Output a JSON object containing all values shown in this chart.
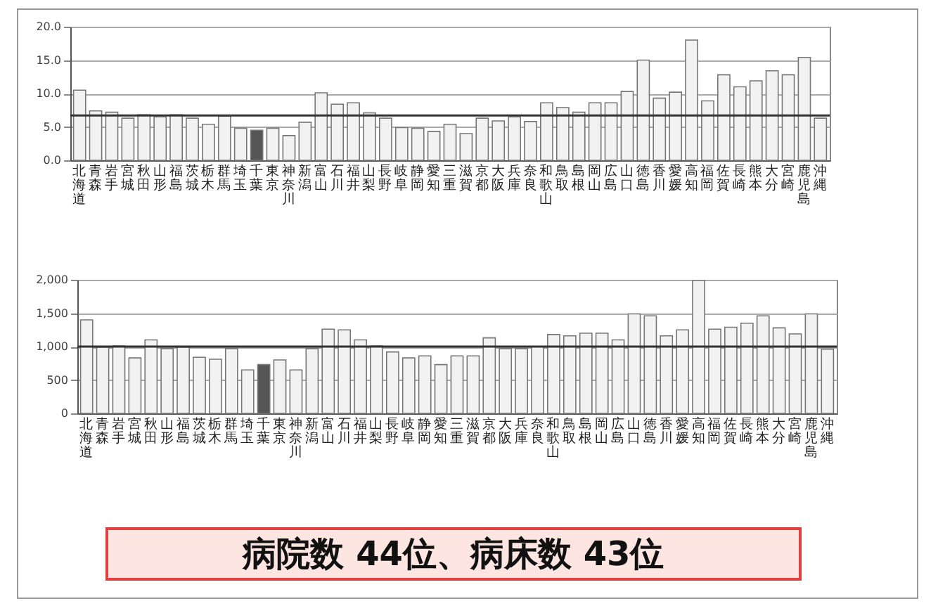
{
  "chart_data": [
    {
      "type": "bar",
      "categories": [
        "北海道",
        "青森",
        "岩手",
        "宮城",
        "秋田",
        "山形",
        "福島",
        "茨城",
        "栃木",
        "群馬",
        "埼玉",
        "千葉",
        "東京",
        "神奈川",
        "新潟",
        "富山",
        "石川",
        "福井",
        "山梨",
        "長野",
        "岐阜",
        "静岡",
        "愛知",
        "三重",
        "滋賀",
        "京都",
        "大阪",
        "兵庫",
        "奈良",
        "和歌山",
        "鳥取",
        "島根",
        "岡山",
        "広島",
        "山口",
        "徳島",
        "香川",
        "愛媛",
        "高知",
        "福岡",
        "佐賀",
        "長崎",
        "熊本",
        "大分",
        "宮崎",
        "鹿児島",
        "沖縄"
      ],
      "values": [
        10.5,
        7.4,
        7.2,
        6.3,
        6.8,
        6.5,
        6.8,
        6.3,
        5.4,
        6.6,
        4.8,
        4.5,
        4.8,
        3.7,
        5.7,
        10.1,
        8.4,
        8.6,
        7.1,
        6.3,
        4.9,
        4.8,
        4.3,
        5.4,
        4.0,
        6.3,
        5.9,
        6.5,
        5.8,
        8.6,
        7.9,
        7.2,
        8.6,
        8.6,
        10.3,
        15.0,
        9.3,
        10.2,
        18.0,
        8.9,
        12.8,
        11.0,
        11.9,
        13.4,
        12.8,
        15.4,
        6.3
      ],
      "colors": [
        "#f2f2f2",
        "#f2f2f2",
        "#f2f2f2",
        "#f2f2f2",
        "#f2f2f2",
        "#f2f2f2",
        "#f2f2f2",
        "#f2f2f2",
        "#f2f2f2",
        "#f2f2f2",
        "#f2f2f2",
        "#555555",
        "#f2f2f2",
        "#f2f2f2",
        "#f2f2f2",
        "#f2f2f2",
        "#f2f2f2",
        "#f2f2f2",
        "#f2f2f2",
        "#f2f2f2",
        "#f2f2f2",
        "#f2f2f2",
        "#f2f2f2",
        "#f2f2f2",
        "#f2f2f2",
        "#f2f2f2",
        "#f2f2f2",
        "#f2f2f2",
        "#f2f2f2",
        "#f2f2f2",
        "#f2f2f2",
        "#f2f2f2",
        "#f2f2f2",
        "#f2f2f2",
        "#f2f2f2",
        "#f2f2f2",
        "#f2f2f2",
        "#f2f2f2",
        "#f2f2f2",
        "#f2f2f2",
        "#f2f2f2",
        "#f2f2f2",
        "#f2f2f2",
        "#f2f2f2",
        "#f2f2f2",
        "#f2f2f2",
        "#f2f2f2"
      ],
      "ylim": [
        0,
        20
      ],
      "yticks": [
        {
          "value": 0,
          "label": "0.0"
        },
        {
          "value": 5,
          "label": "5.0"
        },
        {
          "value": 10,
          "label": "10.0"
        },
        {
          "value": 15,
          "label": "15.0"
        },
        {
          "value": 20,
          "label": "20.0"
        }
      ],
      "grid": "y",
      "ref_lines": [
        {
          "axis": "y",
          "value": 6.7,
          "color": "#333333"
        }
      ]
    },
    {
      "type": "bar",
      "categories": [
        "北海道",
        "青森",
        "岩手",
        "宮城",
        "秋田",
        "山形",
        "福島",
        "茨城",
        "栃木",
        "群馬",
        "埼玉",
        "千葉",
        "東京",
        "神奈川",
        "新潟",
        "富山",
        "石川",
        "福井",
        "山梨",
        "長野",
        "岐阜",
        "静岡",
        "愛知",
        "三重",
        "滋賀",
        "京都",
        "大阪",
        "兵庫",
        "奈良",
        "和歌山",
        "鳥取",
        "島根",
        "岡山",
        "広島",
        "山口",
        "徳島",
        "香川",
        "愛媛",
        "高知",
        "福岡",
        "佐賀",
        "長崎",
        "熊本",
        "大分",
        "宮崎",
        "鹿児島",
        "沖縄"
      ],
      "values": [
        1400,
        990,
        1010,
        830,
        1100,
        970,
        990,
        840,
        810,
        970,
        650,
        730,
        800,
        650,
        970,
        1260,
        1250,
        1100,
        1010,
        920,
        830,
        860,
        730,
        860,
        860,
        1130,
        970,
        970,
        1000,
        1180,
        1160,
        1200,
        1200,
        1100,
        1490,
        1460,
        1160,
        1250,
        1990,
        1260,
        1290,
        1350,
        1460,
        1280,
        1190,
        1490,
        960
      ],
      "colors": [
        "#f2f2f2",
        "#f2f2f2",
        "#f2f2f2",
        "#f2f2f2",
        "#f2f2f2",
        "#f2f2f2",
        "#f2f2f2",
        "#f2f2f2",
        "#f2f2f2",
        "#f2f2f2",
        "#f2f2f2",
        "#555555",
        "#f2f2f2",
        "#f2f2f2",
        "#f2f2f2",
        "#f2f2f2",
        "#f2f2f2",
        "#f2f2f2",
        "#f2f2f2",
        "#f2f2f2",
        "#f2f2f2",
        "#f2f2f2",
        "#f2f2f2",
        "#f2f2f2",
        "#f2f2f2",
        "#f2f2f2",
        "#f2f2f2",
        "#f2f2f2",
        "#f2f2f2",
        "#f2f2f2",
        "#f2f2f2",
        "#f2f2f2",
        "#f2f2f2",
        "#f2f2f2",
        "#f2f2f2",
        "#f2f2f2",
        "#f2f2f2",
        "#f2f2f2",
        "#f2f2f2",
        "#f2f2f2",
        "#f2f2f2",
        "#f2f2f2",
        "#f2f2f2",
        "#f2f2f2",
        "#f2f2f2",
        "#f2f2f2",
        "#f2f2f2"
      ],
      "ylim": [
        0,
        2000
      ],
      "yticks": [
        0,
        500,
        {
          "value": 1000,
          "label": "1,000"
        },
        {
          "value": 1500,
          "label": "1,500"
        },
        {
          "value": 2000,
          "label": "2,000"
        }
      ],
      "grid": "y",
      "ref_lines": [
        {
          "axis": "y",
          "value": 1000,
          "color": "#333333"
        }
      ],
      "annotations": [
        "病院数 44位、病床数 43位"
      ]
    }
  ]
}
